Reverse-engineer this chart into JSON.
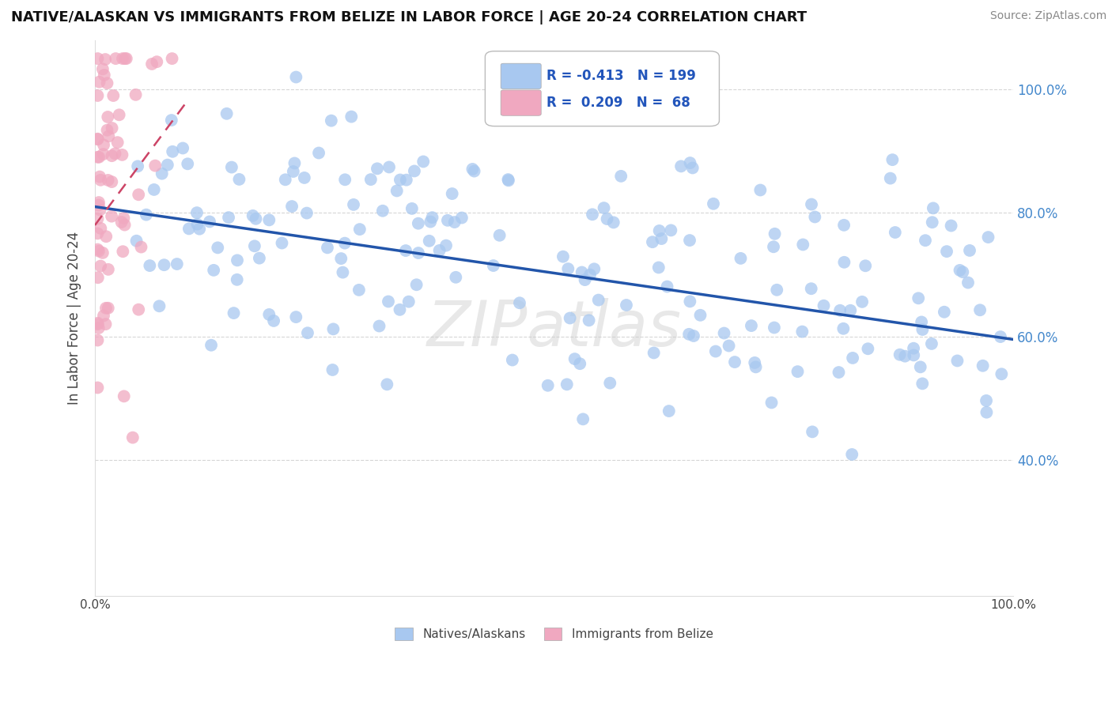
{
  "title": "NATIVE/ALASKAN VS IMMIGRANTS FROM BELIZE IN LABOR FORCE | AGE 20-24 CORRELATION CHART",
  "source_text": "Source: ZipAtlas.com",
  "ylabel": "In Labor Force | Age 20-24",
  "legend_r_blue": "-0.413",
  "legend_n_blue": "199",
  "legend_r_pink": "0.209",
  "legend_n_pink": "68",
  "blue_color": "#a8c8f0",
  "pink_color": "#f0a8c0",
  "trend_blue_color": "#2255aa",
  "trend_pink_color": "#cc4466",
  "watermark": "ZIPatlas",
  "background_color": "#ffffff",
  "xlim": [
    0.0,
    1.0
  ],
  "ylim": [
    0.18,
    1.08
  ],
  "ytick_vals": [
    0.4,
    0.6,
    0.8,
    1.0
  ],
  "ytick_labels": [
    "40.0%",
    "60.0%",
    "80.0%",
    "100.0%"
  ],
  "blue_trend_x": [
    0.0,
    1.0
  ],
  "blue_trend_y": [
    0.81,
    0.595
  ],
  "pink_trend_x": [
    0.0,
    0.1
  ],
  "pink_trend_y": [
    0.78,
    0.98
  ],
  "seed": 1234
}
